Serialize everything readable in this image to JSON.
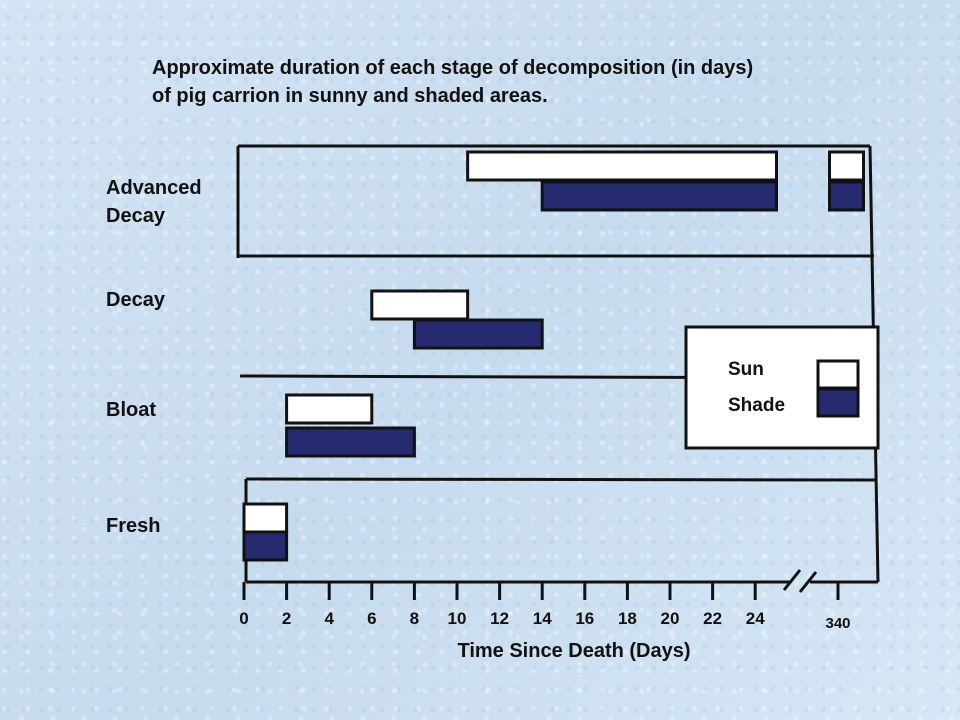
{
  "title": [
    "Approximate duration of each stage of decomposition (in days)",
    "of pig carrion in sunny and shaded areas."
  ],
  "xlabel": "Time Since Death (Days)",
  "stage_labels": {
    "advanced": [
      "Advanced",
      "Decay"
    ],
    "decay": "Decay",
    "bloat": "Bloat",
    "fresh": "Fresh"
  },
  "legend": {
    "sun": "Sun",
    "shade": "Shade"
  },
  "colors": {
    "sun": "#ffffff",
    "shade": "#262a6e",
    "outline": "#111111"
  },
  "chart_data": {
    "type": "gantt",
    "title": "Approximate duration of each stage of decomposition (in days) of pig carrion in sunny and shaded areas.",
    "xlabel": "Time Since Death (Days)",
    "ylabel": "",
    "x_ticks": [
      "0",
      "2",
      "4",
      "6",
      "8",
      "10",
      "12",
      "14",
      "16",
      "18",
      "20",
      "22",
      "24",
      "340"
    ],
    "x_axis_break": "between 24 and 340",
    "categories": [
      "Fresh",
      "Bloat",
      "Decay",
      "Advanced Decay"
    ],
    "series": [
      {
        "name": "Sun",
        "color": "#ffffff",
        "bars": [
          {
            "stage": "Fresh",
            "start": 0,
            "end": 2
          },
          {
            "stage": "Bloat",
            "start": 2,
            "end": 6
          },
          {
            "stage": "Decay",
            "start": 6,
            "end": 10.5
          },
          {
            "stage": "Advanced Decay",
            "start": 10.5,
            "end": 25
          },
          {
            "stage": "Advanced Decay",
            "start": 339.5,
            "end": 341.5
          }
        ]
      },
      {
        "name": "Shade",
        "color": "#262a6e",
        "bars": [
          {
            "stage": "Fresh",
            "start": 0,
            "end": 2
          },
          {
            "stage": "Bloat",
            "start": 2,
            "end": 8
          },
          {
            "stage": "Decay",
            "start": 8,
            "end": 14
          },
          {
            "stage": "Advanced Decay",
            "start": 14,
            "end": 25
          },
          {
            "stage": "Advanced Decay",
            "start": 339.5,
            "end": 341.5
          }
        ]
      }
    ],
    "legend_position": "right"
  }
}
